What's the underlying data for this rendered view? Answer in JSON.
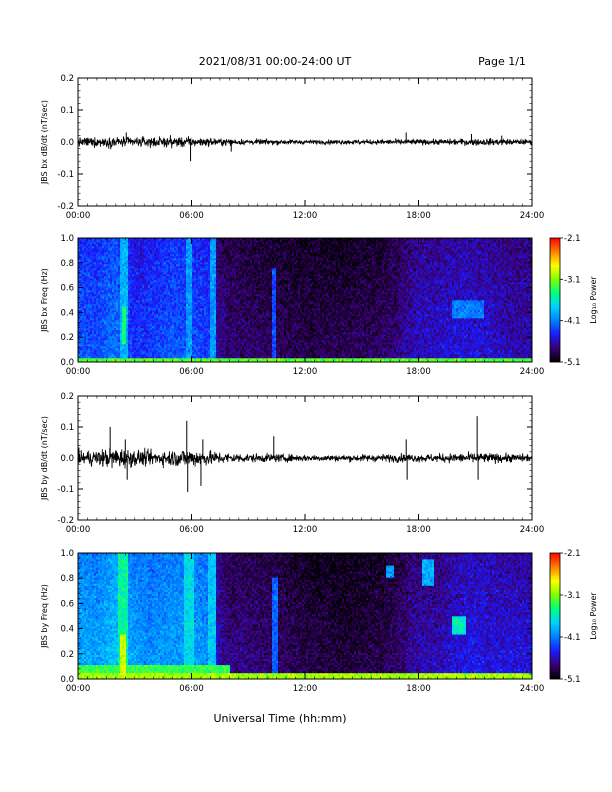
{
  "header": {
    "date_range": "2021/08/31  00:00-24:00 UT",
    "page_label": "Page 1/1"
  },
  "x_axis_label": "Universal Time (hh:mm)",
  "chart_data": [
    {
      "type": "line",
      "id": "bx-dbdt",
      "ylabel": "JBS bx dB/dt (nT/sec)",
      "xlim": [
        0,
        24
      ],
      "ylim": [
        -0.2,
        0.2
      ],
      "xticks": [
        0,
        6,
        12,
        18,
        24
      ],
      "xtick_labels": [
        "00:00",
        "06:00",
        "12:00",
        "18:00",
        "24:00"
      ],
      "yticks": [
        -0.2,
        -0.1,
        0.0,
        0.1,
        0.2
      ],
      "ytick_labels": [
        "-0.2",
        "-0.1",
        "0.0",
        "0.1",
        "0.2"
      ],
      "line_color": "#000000",
      "envelope": {
        "x_hours": [
          0,
          1,
          2,
          3,
          4,
          5,
          6,
          7,
          8,
          9,
          10,
          11,
          12,
          13,
          14,
          15,
          16,
          17,
          18,
          19,
          20,
          21,
          22,
          23,
          24
        ],
        "amplitude": [
          0.018,
          0.02,
          0.022,
          0.02,
          0.02,
          0.022,
          0.02,
          0.016,
          0.013,
          0.011,
          0.011,
          0.01,
          0.009,
          0.009,
          0.009,
          0.01,
          0.01,
          0.012,
          0.011,
          0.011,
          0.013,
          0.014,
          0.014,
          0.012,
          0.01
        ]
      },
      "spikes": [
        {
          "x": 2.55,
          "y": 0.03
        },
        {
          "x": 5.95,
          "y": -0.06
        },
        {
          "x": 8.1,
          "y": -0.03
        },
        {
          "x": 17.35,
          "y": 0.03
        },
        {
          "x": 20.8,
          "y": 0.025
        },
        {
          "x": 22.4,
          "y": 0.02
        }
      ]
    },
    {
      "type": "heatmap",
      "id": "bx-spectrogram",
      "ylabel": "JBS bx Freq (Hz)",
      "xlim": [
        0,
        24
      ],
      "ylim": [
        0,
        1.0
      ],
      "xticks": [
        0,
        6,
        12,
        18,
        24
      ],
      "xtick_labels": [
        "00:00",
        "06:00",
        "12:00",
        "18:00",
        "24:00"
      ],
      "yticks": [
        0.0,
        0.2,
        0.4,
        0.6,
        0.8,
        1.0
      ],
      "ytick_labels": [
        "0.0",
        "0.2",
        "0.4",
        "0.6",
        "0.8",
        "1.0"
      ],
      "colorbar": {
        "label": "Log₁₀ Power",
        "range": [
          -5.1,
          -2.1
        ],
        "ticks": [
          -2.1,
          -3.1,
          -4.1,
          -5.1
        ],
        "tick_labels": [
          "-2.1",
          "-3.1",
          "-4.1",
          "-5.1"
        ],
        "colormap": [
          "#000000",
          "#3a0070",
          "#1a1aff",
          "#0080ff",
          "#00d0ff",
          "#00ff80",
          "#80ff00",
          "#ffff00",
          "#ff8000",
          "#ff0000"
        ]
      },
      "background_level": {
        "x_hours": [
          0,
          1,
          2,
          3,
          4,
          5,
          6,
          7,
          7.4,
          8,
          10,
          12,
          14,
          16,
          17,
          18,
          19,
          20,
          21,
          22,
          23,
          24
        ],
        "log_power": [
          -4.2,
          -4.25,
          -4.1,
          -4.35,
          -4.3,
          -4.2,
          -4.25,
          -4.3,
          -4.65,
          -4.75,
          -4.8,
          -4.85,
          -4.85,
          -4.8,
          -4.7,
          -4.55,
          -4.55,
          -4.5,
          -4.5,
          -4.55,
          -4.6,
          -4.6
        ]
      },
      "features": [
        {
          "kind": "band",
          "t0": 2.2,
          "t1": 2.6,
          "f0": 0.0,
          "f1": 1.0,
          "log_power": -3.9
        },
        {
          "kind": "band",
          "t0": 2.3,
          "t1": 2.55,
          "f0": 0.15,
          "f1": 0.45,
          "log_power": -3.4
        },
        {
          "kind": "band",
          "t0": 5.7,
          "t1": 6.0,
          "f0": 0.0,
          "f1": 1.0,
          "log_power": -4.0
        },
        {
          "kind": "band",
          "t0": 7.0,
          "t1": 7.3,
          "f0": 0.0,
          "f1": 1.0,
          "log_power": -4.0
        },
        {
          "kind": "band",
          "t0": 10.3,
          "t1": 10.5,
          "f0": 0.0,
          "f1": 0.75,
          "log_power": -4.3
        },
        {
          "kind": "blob",
          "t0": 19.8,
          "t1": 21.5,
          "f0": 0.35,
          "f1": 0.5,
          "log_power": -4.1
        },
        {
          "kind": "floor",
          "t0": 0,
          "t1": 24,
          "f0": 0.0,
          "f1": 0.03,
          "log_power": -3.2
        }
      ]
    },
    {
      "type": "line",
      "id": "by-dbdt",
      "ylabel": "JBS by dB/dt (nT/sec)",
      "xlim": [
        0,
        24
      ],
      "ylim": [
        -0.2,
        0.2
      ],
      "xticks": [
        0,
        6,
        12,
        18,
        24
      ],
      "xtick_labels": [
        "00:00",
        "06:00",
        "12:00",
        "18:00",
        "24:00"
      ],
      "yticks": [
        -0.2,
        -0.1,
        0.0,
        0.1,
        0.2
      ],
      "ytick_labels": [
        "-0.2",
        "-0.1",
        "0.0",
        "0.1",
        "0.2"
      ],
      "line_color": "#000000",
      "envelope": {
        "x_hours": [
          0,
          1,
          2,
          3,
          4,
          5,
          6,
          7,
          8,
          9,
          10,
          11,
          12,
          13,
          14,
          15,
          16,
          17,
          18,
          19,
          20,
          21,
          22,
          23,
          24
        ],
        "amplitude": [
          0.03,
          0.035,
          0.045,
          0.035,
          0.03,
          0.035,
          0.04,
          0.03,
          0.022,
          0.018,
          0.018,
          0.016,
          0.014,
          0.014,
          0.014,
          0.015,
          0.016,
          0.018,
          0.016,
          0.018,
          0.02,
          0.022,
          0.02,
          0.018,
          0.016
        ]
      },
      "spikes": [
        {
          "x": 1.7,
          "y": 0.1
        },
        {
          "x": 2.5,
          "y": 0.06
        },
        {
          "x": 2.6,
          "y": -0.07
        },
        {
          "x": 5.75,
          "y": 0.12
        },
        {
          "x": 5.8,
          "y": -0.11
        },
        {
          "x": 6.5,
          "y": -0.09
        },
        {
          "x": 6.6,
          "y": 0.06
        },
        {
          "x": 10.35,
          "y": 0.07
        },
        {
          "x": 17.35,
          "y": 0.06
        },
        {
          "x": 17.4,
          "y": -0.07
        },
        {
          "x": 21.1,
          "y": 0.135
        },
        {
          "x": 21.15,
          "y": -0.07
        }
      ]
    },
    {
      "type": "heatmap",
      "id": "by-spectrogram",
      "ylabel": "JBS by Freq (Hz)",
      "xlim": [
        0,
        24
      ],
      "ylim": [
        0,
        1.0
      ],
      "xticks": [
        0,
        6,
        12,
        18,
        24
      ],
      "xtick_labels": [
        "00:00",
        "06:00",
        "12:00",
        "18:00",
        "24:00"
      ],
      "yticks": [
        0.0,
        0.2,
        0.4,
        0.6,
        0.8,
        1.0
      ],
      "ytick_labels": [
        "0.0",
        "0.2",
        "0.4",
        "0.6",
        "0.8",
        "1.0"
      ],
      "colorbar": {
        "label": "Log₁₀ Power",
        "range": [
          -5.1,
          -2.1
        ],
        "ticks": [
          -2.1,
          -3.1,
          -4.1,
          -5.1
        ],
        "tick_labels": [
          "-2.1",
          "-3.1",
          "-4.1",
          "-5.1"
        ],
        "colormap": [
          "#000000",
          "#3a0070",
          "#1a1aff",
          "#0080ff",
          "#00d0ff",
          "#00ff80",
          "#80ff00",
          "#ffff00",
          "#ff8000",
          "#ff0000"
        ]
      },
      "background_level": {
        "x_hours": [
          0,
          1,
          2,
          3,
          4,
          5,
          6,
          7,
          7.4,
          8,
          10,
          12,
          14,
          16,
          17,
          18,
          19,
          20,
          21,
          22,
          23,
          24
        ],
        "log_power": [
          -3.9,
          -3.95,
          -3.8,
          -3.95,
          -4.0,
          -3.95,
          -3.95,
          -4.0,
          -4.6,
          -4.7,
          -4.75,
          -4.85,
          -4.9,
          -4.85,
          -4.75,
          -4.6,
          -4.6,
          -4.5,
          -4.45,
          -4.5,
          -4.5,
          -4.5
        ]
      },
      "features": [
        {
          "kind": "band",
          "t0": 2.1,
          "t1": 2.6,
          "f0": 0.0,
          "f1": 1.0,
          "log_power": -3.5
        },
        {
          "kind": "band",
          "t0": 2.2,
          "t1": 2.5,
          "f0": 0.0,
          "f1": 0.35,
          "log_power": -2.9
        },
        {
          "kind": "band",
          "t0": 5.6,
          "t1": 6.1,
          "f0": 0.0,
          "f1": 1.0,
          "log_power": -3.7
        },
        {
          "kind": "band",
          "t0": 6.9,
          "t1": 7.3,
          "f0": 0.0,
          "f1": 1.0,
          "log_power": -3.8
        },
        {
          "kind": "band",
          "t0": 10.3,
          "t1": 10.55,
          "f0": 0.0,
          "f1": 0.8,
          "log_power": -4.2
        },
        {
          "kind": "blob",
          "t0": 16.3,
          "t1": 16.7,
          "f0": 0.8,
          "f1": 0.9,
          "log_power": -4.0
        },
        {
          "kind": "blob",
          "t0": 18.2,
          "t1": 18.8,
          "f0": 0.75,
          "f1": 0.95,
          "log_power": -3.9
        },
        {
          "kind": "blob",
          "t0": 19.8,
          "t1": 20.5,
          "f0": 0.35,
          "f1": 0.5,
          "log_power": -3.6
        },
        {
          "kind": "floor",
          "t0": 0,
          "t1": 24,
          "f0": 0.0,
          "f1": 0.05,
          "log_power": -3.0
        },
        {
          "kind": "floor",
          "t0": 0,
          "t1": 8,
          "f0": 0.0,
          "f1": 0.12,
          "log_power": -3.3
        }
      ]
    }
  ]
}
